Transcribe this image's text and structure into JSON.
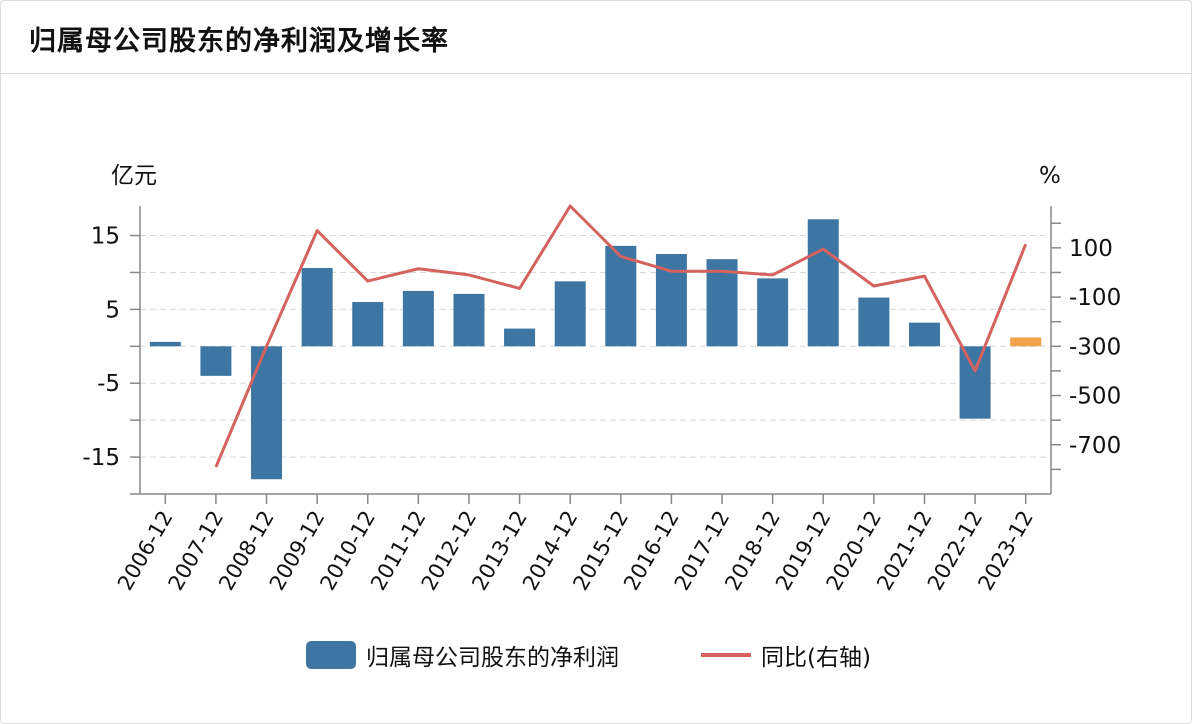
{
  "title": "归属母公司股东的净利润及增长率",
  "colors": {
    "bar": "#3d76a3",
    "bar_forecast": "#f0a14a",
    "line": "#d4625f",
    "grid": "#d8d8d8",
    "axis": "#888888"
  },
  "chart_data": {
    "type": "bar+line",
    "categories": [
      "2006-12",
      "2007-12",
      "2008-12",
      "2009-12",
      "2010-12",
      "2011-12",
      "2012-12",
      "2013-12",
      "2014-12",
      "2015-12",
      "2016-12",
      "2017-12",
      "2018-12",
      "2019-12",
      "2020-12",
      "2021-12",
      "2022-12",
      "2023-12"
    ],
    "left_axis": {
      "unit": "亿元",
      "ylim": [
        -20,
        19
      ],
      "ticks": [
        15,
        5,
        -5,
        -15
      ]
    },
    "right_axis": {
      "unit": "%",
      "ylim": [
        -900,
        270
      ],
      "ticks": [
        100,
        -100,
        -300,
        -500,
        -700
      ]
    },
    "legend": {
      "position": "bottom"
    },
    "grid": true,
    "series": [
      {
        "name": "归属母公司股东的净利润",
        "type": "bar",
        "axis": "left",
        "values": [
          0.6,
          -4.0,
          -18.0,
          10.6,
          6.0,
          7.5,
          7.1,
          2.4,
          8.8,
          13.6,
          12.5,
          11.8,
          9.2,
          17.2,
          6.6,
          3.2,
          -9.8,
          1.2
        ],
        "highlight_last": true
      },
      {
        "name": "同比(右轴)",
        "type": "line",
        "axis": "right",
        "values": [
          null,
          -790,
          -300,
          170,
          -35,
          15,
          -10,
          -65,
          270,
          65,
          5,
          5,
          -10,
          95,
          -55,
          -15,
          -400,
          115
        ]
      }
    ]
  }
}
